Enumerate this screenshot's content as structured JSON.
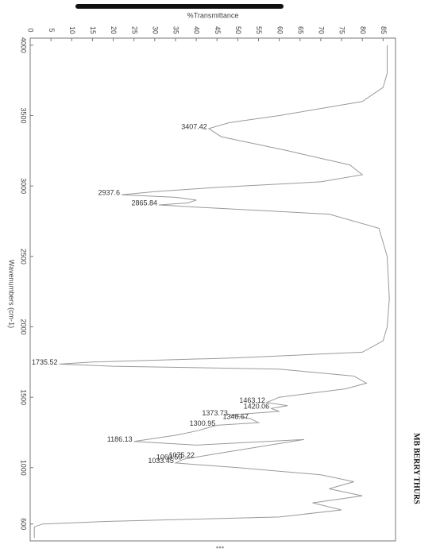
{
  "chart_data": {
    "type": "line",
    "y_label": "%Transmittance",
    "x_label": "Wavenumbers (cm-1)",
    "xlim": [
      4050,
      480
    ],
    "xticks": [
      4000,
      3500,
      3000,
      2500,
      2000,
      1500,
      1000,
      600
    ],
    "ylim": [
      0,
      88
    ],
    "yticks": [
      0,
      5,
      10,
      15,
      20,
      25,
      30,
      35,
      40,
      45,
      50,
      55,
      60,
      65,
      70,
      75,
      80,
      85
    ],
    "color": "#9a9a9a",
    "x": [
      4000,
      3800,
      3700,
      3600,
      3500,
      3450,
      3407.42,
      3350,
      3250,
      3150,
      3080,
      3030,
      2990,
      2960,
      2937.6,
      2920,
      2900,
      2880,
      2865.84,
      2850,
      2800,
      2700,
      2500,
      2200,
      2000,
      1900,
      1820,
      1780,
      1750,
      1735.52,
      1720,
      1700,
      1650,
      1600,
      1560,
      1500,
      1463.12,
      1440,
      1420.06,
      1400,
      1373.73,
      1348.67,
      1320,
      1300.95,
      1260,
      1230,
      1186.13,
      1160,
      1200,
      1100,
      1075.22,
      1060.59,
      1033.45,
      1000,
      950,
      900,
      850,
      800,
      750,
      700,
      650,
      620,
      600,
      580,
      500
    ],
    "values": [
      86,
      86,
      85,
      80,
      60,
      48,
      43,
      46,
      62,
      77,
      80,
      70,
      45,
      30,
      22,
      35,
      40,
      38,
      31,
      40,
      72,
      84,
      86,
      86.5,
      86,
      85,
      80,
      50,
      15,
      7,
      20,
      60,
      78,
      81,
      76,
      60,
      57,
      62,
      58,
      60,
      48,
      53,
      55,
      45,
      40,
      35,
      25,
      40,
      66,
      45,
      40,
      37,
      35,
      50,
      70,
      78,
      72,
      80,
      68,
      75,
      60,
      20,
      3,
      1,
      1
    ],
    "peaks": {
      "x": [
        3407.42,
        2937.6,
        2865.84,
        1735.52,
        1463.12,
        1420.06,
        1373.73,
        1348.67,
        1300.95,
        1186.13,
        1075.22,
        1060.59,
        1033.45
      ],
      "values": [
        43,
        22,
        31,
        7,
        57,
        58,
        48,
        53,
        45,
        25,
        40,
        37,
        35
      ]
    },
    "annotations": [
      "MB BERRY THURS"
    ]
  },
  "pager": "•••"
}
